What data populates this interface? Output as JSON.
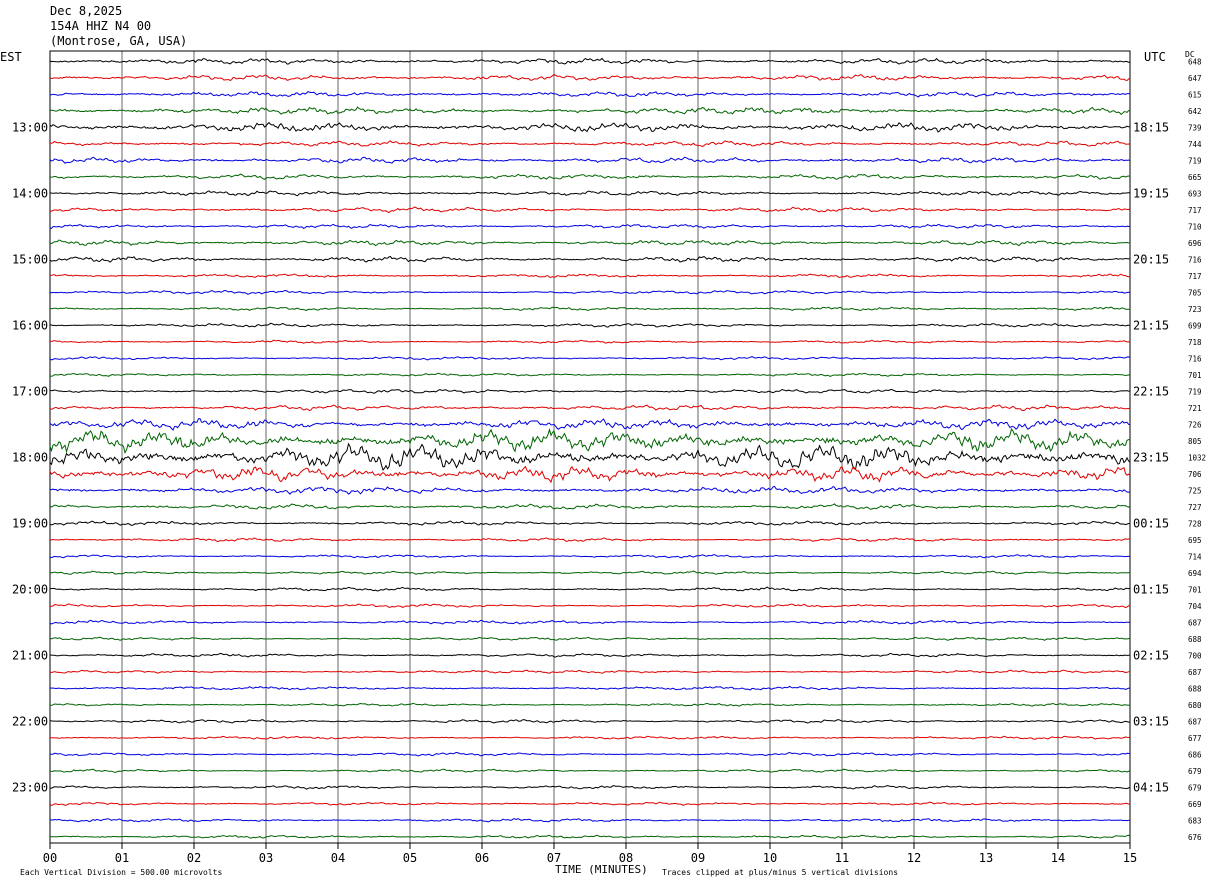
{
  "header": {
    "date": "Dec 8,2025",
    "station": "154A HHZ N4 00",
    "location": "(Montrose, GA, USA)"
  },
  "labels": {
    "left_tz": "EST",
    "right_tz": "UTC",
    "dc": "DC",
    "x_title": "TIME (MINUTES)",
    "scale_note": "Each Vertical Division =  500.00 microvolts",
    "clip_note": "Traces clipped at plus/minus 5 vertical divisions"
  },
  "colors": {
    "trace_cycle": [
      "#000000",
      "#e00000",
      "#0000e0",
      "#006400"
    ],
    "grid": "#000000",
    "background": "#ffffff"
  },
  "chart_data": {
    "type": "line",
    "title": "154A HHZ N4 00 (Montrose, GA, USA)",
    "xlabel": "TIME (MINUTES)",
    "xlim": [
      0,
      15
    ],
    "x_ticks": [
      "00",
      "01",
      "02",
      "03",
      "04",
      "05",
      "06",
      "07",
      "08",
      "09",
      "10",
      "11",
      "12",
      "13",
      "14",
      "15"
    ],
    "left_hour_labels": [
      "13:00",
      "14:00",
      "15:00",
      "16:00",
      "17:00",
      "18:00",
      "19:00",
      "20:00",
      "21:00",
      "22:00",
      "23:00"
    ],
    "right_hour_labels": [
      "18:15",
      "19:15",
      "20:15",
      "21:15",
      "22:15",
      "23:15",
      "00:15",
      "01:15",
      "02:15",
      "03:15",
      "04:15"
    ],
    "dc_offsets": [
      648,
      647,
      615,
      642,
      739,
      744,
      719,
      665,
      693,
      717,
      710,
      696,
      716,
      717,
      705,
      723,
      699,
      718,
      716,
      701,
      719,
      721,
      726,
      805,
      1032,
      706,
      725,
      727,
      728,
      695,
      714,
      694,
      701,
      704,
      687,
      688,
      700,
      687,
      688,
      680,
      687,
      677,
      686,
      679,
      679,
      669,
      683,
      676
    ],
    "trace_amplitude_divisions": [
      0.5,
      0.5,
      0.45,
      0.6,
      0.8,
      0.45,
      0.5,
      0.45,
      0.4,
      0.4,
      0.35,
      0.45,
      0.45,
      0.3,
      0.3,
      0.3,
      0.3,
      0.25,
      0.25,
      0.25,
      0.35,
      0.45,
      0.9,
      1.8,
      2.2,
      1.3,
      0.6,
      0.45,
      0.35,
      0.3,
      0.25,
      0.25,
      0.3,
      0.28,
      0.3,
      0.25,
      0.28,
      0.25,
      0.28,
      0.22,
      0.28,
      0.25,
      0.28,
      0.25,
      0.28,
      0.25,
      0.28,
      0.25
    ]
  }
}
